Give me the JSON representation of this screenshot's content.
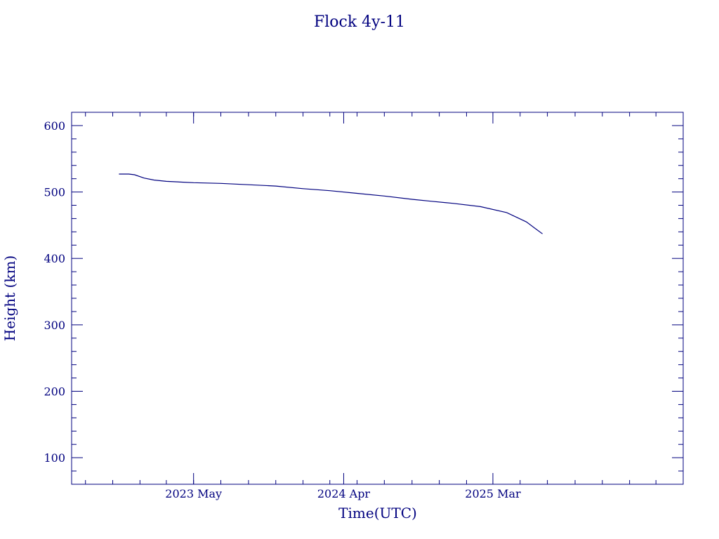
{
  "colors": {
    "ink": "#00007f",
    "background": "#ffffff"
  },
  "chart_data": {
    "type": "line",
    "title": "Flock 4y-11",
    "xlabel": "Time(UTC)",
    "ylabel": "Height (km)",
    "x_tick_labels": [
      {
        "date": "2023-05-01",
        "label": "2023 May"
      },
      {
        "date": "2024-04-01",
        "label": "2024 Apr"
      },
      {
        "date": "2025-03-01",
        "label": "2025 Mar"
      }
    ],
    "y_ticks": [
      100,
      200,
      300,
      400,
      500,
      600
    ],
    "xlim": [
      "2022-08-01",
      "2026-05-01"
    ],
    "ylim": [
      60,
      620
    ],
    "grid": false,
    "series": [
      {
        "x": [
          "2022-11-15",
          "2022-12-07",
          "2022-12-20",
          "2023-01-10",
          "2023-02-01",
          "2023-03-01",
          "2023-05-01",
          "2023-07-01",
          "2023-09-01",
          "2023-11-01",
          "2024-01-01",
          "2024-03-01",
          "2024-05-01",
          "2024-07-01",
          "2024-09-01",
          "2024-10-15",
          "2024-12-01",
          "2025-02-01",
          "2025-04-01",
          "2025-05-15",
          "2025-06-20"
        ],
        "values": [
          527,
          527,
          526,
          521,
          518,
          516,
          514,
          513,
          511,
          509,
          505,
          502,
          498,
          494,
          489,
          486,
          483,
          478,
          469,
          455,
          437
        ]
      }
    ]
  }
}
